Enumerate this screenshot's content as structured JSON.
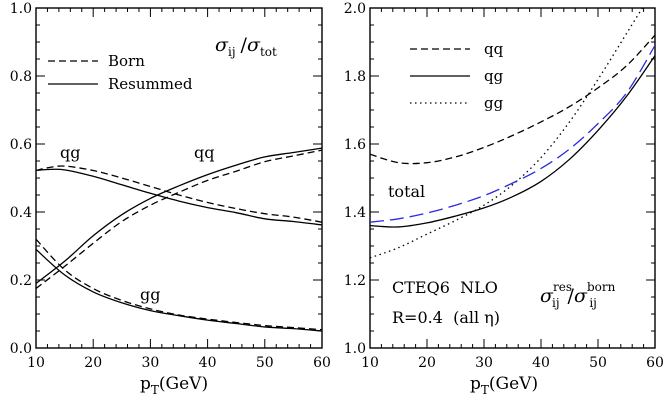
{
  "chart_data": [
    {
      "type": "line",
      "panel": "left",
      "xlim": [
        10,
        60
      ],
      "ylim": [
        0.0,
        1.0
      ],
      "x_ticks": [
        10,
        20,
        30,
        40,
        50,
        60
      ],
      "y_ticks": [
        0.0,
        0.2,
        0.4,
        0.6,
        0.8,
        1.0
      ],
      "x_tick_labels": [
        "10",
        "20",
        "30",
        "40",
        "50",
        "60"
      ],
      "y_tick_labels": [
        "0.0",
        "0.2",
        "0.4",
        "0.6",
        "0.8",
        "1.0"
      ],
      "xlabel": {
        "main": "p",
        "sub": "T",
        "rest": "(GeV)"
      },
      "corner_label": {
        "s1": "σ",
        "sub1": "ij",
        "slash": "/",
        "s2": "σ",
        "sub2": "tot"
      },
      "legend": {
        "placement": "top-left",
        "entries": [
          {
            "label": "Born",
            "style": "dashed"
          },
          {
            "label": "Resummed",
            "style": "solid"
          }
        ]
      },
      "curve_labels": [
        {
          "text": "qg",
          "x": 13,
          "y": 0.565
        },
        {
          "text": "qq",
          "x": 38,
          "y": 0.565
        },
        {
          "text": "gg",
          "x": 32,
          "y": 0.145
        }
      ],
      "series": [
        {
          "name": "qg",
          "style": "solid",
          "color": "#000000",
          "x": [
            10,
            12,
            15,
            20,
            25,
            30,
            35,
            40,
            45,
            50,
            55,
            60
          ],
          "y": [
            0.522,
            0.525,
            0.524,
            0.505,
            0.48,
            0.455,
            0.432,
            0.413,
            0.398,
            0.38,
            0.372,
            0.362
          ]
        },
        {
          "name": "qg",
          "style": "dashed",
          "color": "#000000",
          "x": [
            10,
            12,
            15,
            20,
            25,
            30,
            35,
            40,
            45,
            50,
            55,
            60
          ],
          "y": [
            0.522,
            0.53,
            0.535,
            0.522,
            0.5,
            0.475,
            0.45,
            0.428,
            0.41,
            0.395,
            0.385,
            0.37
          ]
        },
        {
          "name": "qq",
          "style": "solid",
          "color": "#000000",
          "x": [
            10,
            15,
            20,
            25,
            30,
            35,
            40,
            45,
            50,
            55,
            60
          ],
          "y": [
            0.19,
            0.255,
            0.33,
            0.392,
            0.44,
            0.477,
            0.51,
            0.538,
            0.562,
            0.575,
            0.588
          ]
        },
        {
          "name": "qq",
          "style": "dashed",
          "color": "#000000",
          "x": [
            10,
            15,
            20,
            25,
            30,
            35,
            40,
            45,
            50,
            55,
            60
          ],
          "y": [
            0.175,
            0.24,
            0.308,
            0.372,
            0.42,
            0.458,
            0.493,
            0.52,
            0.548,
            0.565,
            0.582
          ]
        },
        {
          "name": "gg",
          "style": "solid",
          "color": "#000000",
          "x": [
            10,
            15,
            20,
            25,
            30,
            35,
            40,
            45,
            50,
            55,
            60
          ],
          "y": [
            0.29,
            0.215,
            0.165,
            0.133,
            0.11,
            0.095,
            0.082,
            0.072,
            0.062,
            0.057,
            0.05
          ]
        },
        {
          "name": "gg",
          "style": "dashed",
          "color": "#000000",
          "x": [
            10,
            15,
            20,
            25,
            30,
            35,
            40,
            45,
            50,
            55,
            60
          ],
          "y": [
            0.32,
            0.23,
            0.175,
            0.14,
            0.115,
            0.097,
            0.085,
            0.075,
            0.066,
            0.06,
            0.054
          ]
        }
      ]
    },
    {
      "type": "line",
      "panel": "right",
      "xlim": [
        10,
        60
      ],
      "ylim": [
        1.0,
        2.0
      ],
      "x_ticks": [
        10,
        20,
        30,
        40,
        50,
        60
      ],
      "y_ticks": [
        1.0,
        1.2,
        1.4,
        1.6,
        1.8,
        2.0
      ],
      "x_tick_labels": [
        "10",
        "20",
        "30",
        "40",
        "50",
        "60"
      ],
      "y_tick_labels": [
        "1.0",
        "1.2",
        "1.4",
        "1.6",
        "1.8",
        "2.0"
      ],
      "xlabel": {
        "main": "p",
        "sub": "T",
        "rest": "(GeV)"
      },
      "corner_label": {
        "s1": "σ",
        "sub1": "ij",
        "sup1": "res",
        "slash": "/",
        "s2": "σ",
        "sub2": "ij",
        "sup2": "born"
      },
      "annotations": [
        {
          "text": "total",
          "x": 13,
          "y": 1.47
        },
        {
          "text": "CTEQ6  NLO",
          "x": 14,
          "y": 1.18
        },
        {
          "text": "R=0.4  (all η)",
          "x": 14,
          "y": 1.09
        }
      ],
      "legend": {
        "placement": "top-left",
        "entries": [
          {
            "label": "qq",
            "style": "dashed"
          },
          {
            "label": "qg",
            "style": "solid"
          },
          {
            "label": "gg",
            "style": "dotted"
          }
        ]
      },
      "series": [
        {
          "name": "qq",
          "style": "dashed",
          "color": "#000000",
          "x": [
            10,
            15,
            20,
            25,
            30,
            35,
            40,
            45,
            50,
            55,
            60
          ],
          "y": [
            1.57,
            1.545,
            1.545,
            1.562,
            1.59,
            1.625,
            1.665,
            1.71,
            1.765,
            1.83,
            1.92
          ]
        },
        {
          "name": "qg",
          "style": "solid",
          "color": "#000000",
          "x": [
            10,
            15,
            20,
            25,
            30,
            35,
            40,
            45,
            50,
            55,
            60
          ],
          "y": [
            1.36,
            1.356,
            1.368,
            1.388,
            1.412,
            1.445,
            1.49,
            1.555,
            1.64,
            1.74,
            1.86
          ]
        },
        {
          "name": "gg",
          "style": "dotted",
          "color": "#000000",
          "x": [
            10,
            15,
            20,
            25,
            30,
            35,
            40,
            45,
            50,
            55,
            60
          ],
          "y": [
            1.265,
            1.295,
            1.335,
            1.375,
            1.42,
            1.48,
            1.56,
            1.665,
            1.79,
            1.925,
            2.06
          ]
        },
        {
          "name": "total",
          "style": "long-dashed",
          "color": "#2a2ae0",
          "x": [
            10,
            15,
            20,
            25,
            30,
            35,
            40,
            45,
            50,
            55,
            60
          ],
          "y": [
            1.37,
            1.38,
            1.397,
            1.42,
            1.448,
            1.485,
            1.528,
            1.585,
            1.66,
            1.75,
            1.89
          ]
        }
      ]
    }
  ]
}
